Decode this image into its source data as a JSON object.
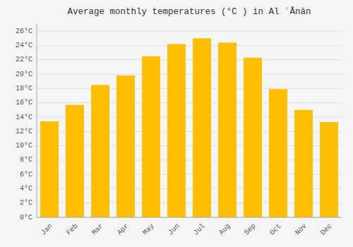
{
  "chart_data": {
    "type": "bar",
    "title": "Average monthly temperatures (°C ) in Al ʿÂnān",
    "categories": [
      "Jan",
      "Feb",
      "Mar",
      "Apr",
      "May",
      "Jun",
      "Jul",
      "Aug",
      "Sep",
      "Oct",
      "Nov",
      "Dec"
    ],
    "values": [
      13.4,
      15.7,
      18.5,
      19.8,
      22.5,
      24.2,
      25.0,
      24.4,
      22.3,
      17.9,
      15.0,
      13.3
    ],
    "color": "#FFBF00",
    "ylim": [
      0,
      27
    ],
    "yticks": [
      {
        "value": 0,
        "label": "0°C"
      },
      {
        "value": 2,
        "label": "2°C"
      },
      {
        "value": 4,
        "label": "4°C"
      },
      {
        "value": 6,
        "label": "6°C"
      },
      {
        "value": 8,
        "label": "8°C"
      },
      {
        "value": 10,
        "label": "10°C"
      },
      {
        "value": 12,
        "label": "12°C"
      },
      {
        "value": 14,
        "label": "14°C"
      },
      {
        "value": 16,
        "label": "16°C"
      },
      {
        "value": 18,
        "label": "18°C"
      },
      {
        "value": 20,
        "label": "20°C"
      },
      {
        "value": 22,
        "label": "22°C"
      },
      {
        "value": 24,
        "label": "24°C"
      },
      {
        "value": 26,
        "label": "26°C"
      }
    ],
    "grid": true
  }
}
